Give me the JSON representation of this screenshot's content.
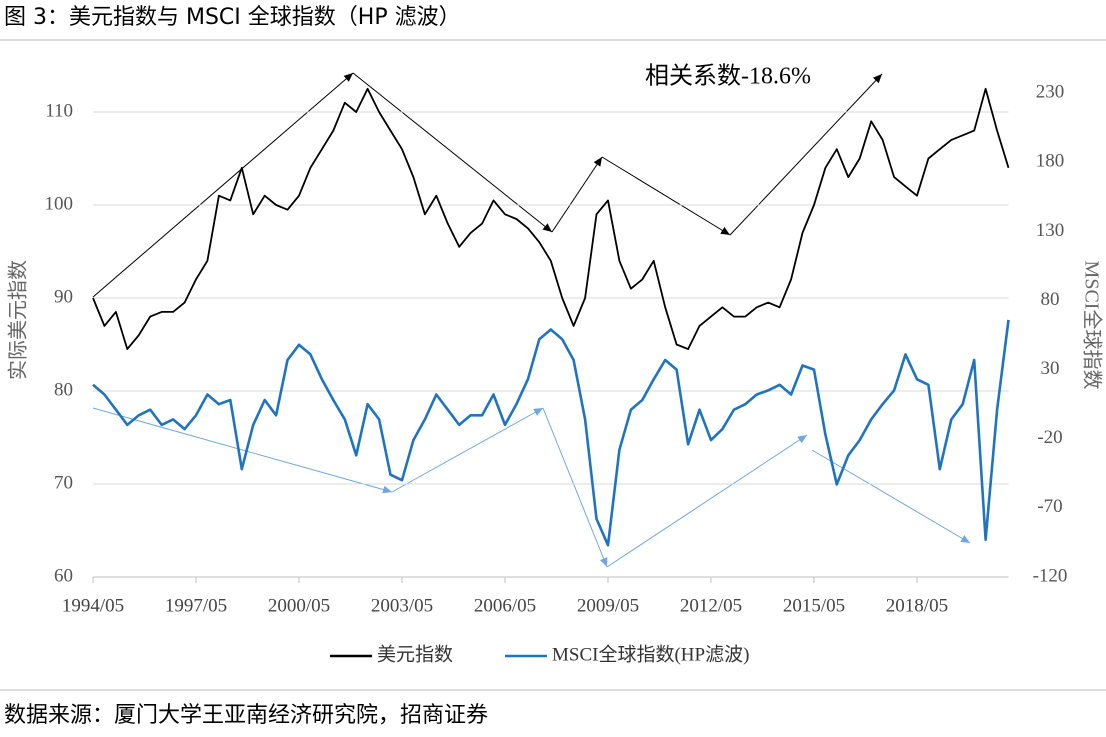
{
  "chart_data": {
    "type": "line",
    "title": "图 3：美元指数与 MSCI 全球指数（HP 滤波）",
    "annotation": "相关系数-18.6%",
    "ylabel": "实际美元指数",
    "y2label": "MSCI全球指数",
    "source": "数据来源：厦门大学王亚南经济研究院，招商证券",
    "x": [
      "1994/05",
      "1994/09",
      "1995/01",
      "1995/05",
      "1995/09",
      "1996/01",
      "1996/05",
      "1996/09",
      "1997/01",
      "1997/05",
      "1997/09",
      "1998/01",
      "1998/05",
      "1998/09",
      "1999/01",
      "1999/05",
      "1999/09",
      "2000/01",
      "2000/05",
      "2000/09",
      "2001/01",
      "2001/05",
      "2001/09",
      "2002/01",
      "2002/05",
      "2002/09",
      "2003/01",
      "2003/05",
      "2003/09",
      "2004/01",
      "2004/05",
      "2004/09",
      "2005/01",
      "2005/05",
      "2005/09",
      "2006/01",
      "2006/05",
      "2006/09",
      "2007/01",
      "2007/05",
      "2007/09",
      "2008/01",
      "2008/05",
      "2008/09",
      "2009/01",
      "2009/05",
      "2009/09",
      "2010/01",
      "2010/05",
      "2010/09",
      "2011/01",
      "2011/05",
      "2011/09",
      "2012/01",
      "2012/05",
      "2012/09",
      "2013/01",
      "2013/05",
      "2013/09",
      "2014/01",
      "2014/05",
      "2014/09",
      "2015/01",
      "2015/05",
      "2015/09",
      "2016/01",
      "2016/05",
      "2016/09",
      "2017/01",
      "2017/05",
      "2017/09",
      "2018/01",
      "2018/05",
      "2018/09",
      "2019/01",
      "2019/05",
      "2019/09",
      "2020/01",
      "2020/05",
      "2020/09",
      "2021/01"
    ],
    "xticks": [
      "1994/05",
      "1997/05",
      "2000/05",
      "2003/05",
      "2006/05",
      "2009/05",
      "2012/05",
      "2015/05",
      "2018/05"
    ],
    "series": [
      {
        "name": "美元指数",
        "color": "#000000",
        "axis": "y",
        "values": [
          90,
          87,
          88.5,
          84.5,
          86,
          88,
          88.5,
          88.5,
          89.5,
          92,
          94,
          101,
          100.5,
          104,
          99,
          101,
          100,
          99.5,
          101,
          104,
          106,
          108,
          111,
          110,
          112.5,
          110,
          108,
          106,
          103,
          99,
          101,
          98,
          95.5,
          97,
          98,
          100.5,
          99,
          98.5,
          97.5,
          96,
          94,
          90,
          87,
          90,
          99,
          100.5,
          94,
          91,
          92,
          94,
          89,
          85,
          84.5,
          87,
          88,
          89,
          88,
          88,
          89,
          89.5,
          89,
          92,
          97,
          100,
          104,
          106,
          103,
          105,
          109,
          107,
          103,
          102,
          101,
          105,
          106,
          107,
          107.5,
          108,
          112.5,
          108,
          104
        ]
      },
      {
        "name": "MSCI全球指数(HP滤波)",
        "color": "#1f74c2",
        "axis": "y2",
        "values": [
          19,
          12,
          1,
          -10,
          -3,
          1,
          -10,
          -6,
          -13,
          -3,
          12,
          5,
          8,
          -42,
          -10,
          8,
          -3,
          37,
          48,
          41,
          23,
          8,
          -6,
          -32,
          5,
          -6,
          -46,
          -50,
          -21,
          -6,
          12,
          1,
          -10,
          -3,
          -3,
          12,
          -10,
          5,
          23,
          52,
          59,
          52,
          37,
          -6,
          -78,
          -97,
          -28,
          1,
          8,
          23,
          37,
          30,
          -24,
          1,
          -21,
          -13,
          1,
          5,
          12,
          15,
          19,
          12,
          33,
          30,
          -17,
          -53,
          -32,
          -21,
          -6,
          5,
          15,
          41,
          23,
          19,
          -42,
          -6,
          5,
          37,
          -93,
          1,
          66
        ]
      }
    ],
    "ylim": [
      60,
      115
    ],
    "yticks": [
      60,
      70,
      80,
      90,
      100,
      110
    ],
    "y2lim": [
      -120,
      250
    ],
    "y2ticks": [
      -120,
      -70,
      -20,
      30,
      80,
      130,
      180,
      230
    ],
    "grid": true,
    "legend": "bottom"
  }
}
